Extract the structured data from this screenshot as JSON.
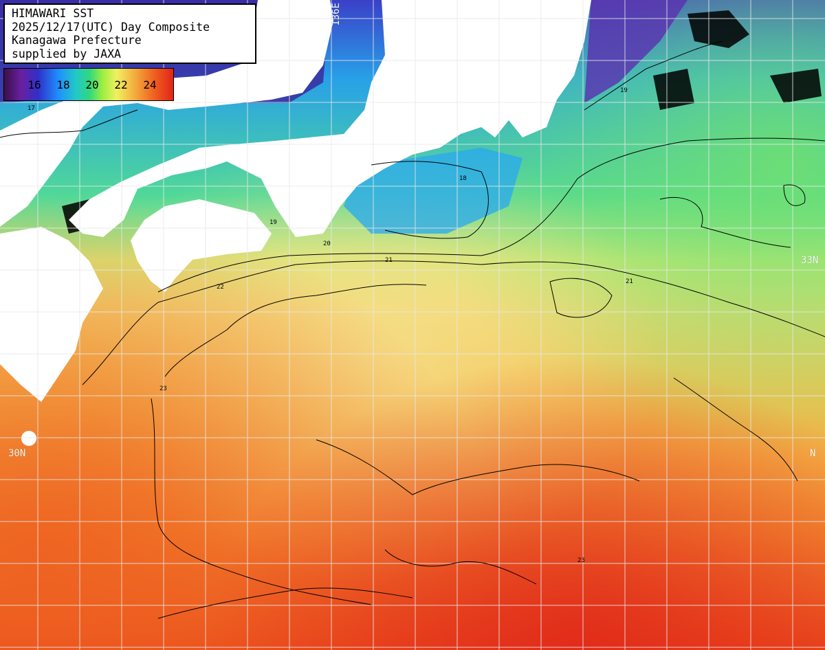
{
  "header": {
    "lines": [
      "HIMAWARI SST",
      "2025/12/17(UTC) Day Composite",
      "Kanagawa Prefecture",
      "supplied by JAXA"
    ]
  },
  "colorbar": {
    "ticks": [
      "16",
      "18",
      "20",
      "22",
      "24"
    ],
    "stops": [
      "#3a1048",
      "#6a1fa0",
      "#3030c8",
      "#1e90ff",
      "#22c8c8",
      "#30d880",
      "#a0ee40",
      "#f0f060",
      "#f4b040",
      "#f06020",
      "#e02018"
    ]
  },
  "grid_labels": {
    "lon_136e": "136E",
    "lat_33n": "33N",
    "lat_30n": "30N",
    "lat_30n_right": "N"
  },
  "map": {
    "land_color": "#ffffff",
    "nodata_color": "#000000",
    "gridline_color": "#e8e8e8",
    "contour_color": "#000000",
    "contour_labels": [
      "17",
      "18",
      "19",
      "20",
      "21",
      "22",
      "23"
    ]
  }
}
